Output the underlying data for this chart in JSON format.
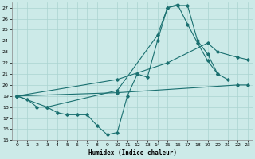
{
  "xlabel": "Humidex (Indice chaleur)",
  "xlim": [
    -0.5,
    23.5
  ],
  "ylim": [
    15,
    27.5
  ],
  "yticks": [
    15,
    16,
    17,
    18,
    19,
    20,
    21,
    22,
    23,
    24,
    25,
    26,
    27
  ],
  "xticks": [
    0,
    1,
    2,
    3,
    4,
    5,
    6,
    7,
    8,
    9,
    10,
    11,
    12,
    13,
    14,
    15,
    16,
    17,
    18,
    19,
    20,
    21,
    22,
    23
  ],
  "bg_color": "#cceae8",
  "line_color": "#1a7070",
  "grid_color": "#aad4d0",
  "line1_x": [
    0,
    1,
    2,
    3,
    4,
    5,
    6,
    7,
    8,
    9,
    10,
    11,
    12,
    13,
    14,
    15,
    16,
    17,
    18,
    19,
    20,
    21
  ],
  "line1_y": [
    19,
    18.7,
    18.0,
    18.0,
    17.5,
    17.3,
    17.3,
    17.3,
    16.3,
    15.5,
    15.7,
    19.0,
    21.0,
    20.7,
    24.0,
    27.0,
    27.2,
    27.2,
    24.0,
    22.8,
    21.0,
    20.5
  ],
  "line2_x": [
    0,
    3,
    10,
    14,
    15,
    16,
    17,
    18,
    19,
    20
  ],
  "line2_y": [
    19,
    18.0,
    19.5,
    24.5,
    27.0,
    27.3,
    25.5,
    23.8,
    22.2,
    21.0
  ],
  "line3_x": [
    0,
    10,
    15,
    19,
    20,
    22,
    23
  ],
  "line3_y": [
    19,
    20.5,
    22.0,
    23.8,
    23.0,
    22.5,
    22.3
  ],
  "line4_x": [
    0,
    10,
    22,
    23
  ],
  "line4_y": [
    19,
    19.3,
    20.0,
    20.0
  ]
}
